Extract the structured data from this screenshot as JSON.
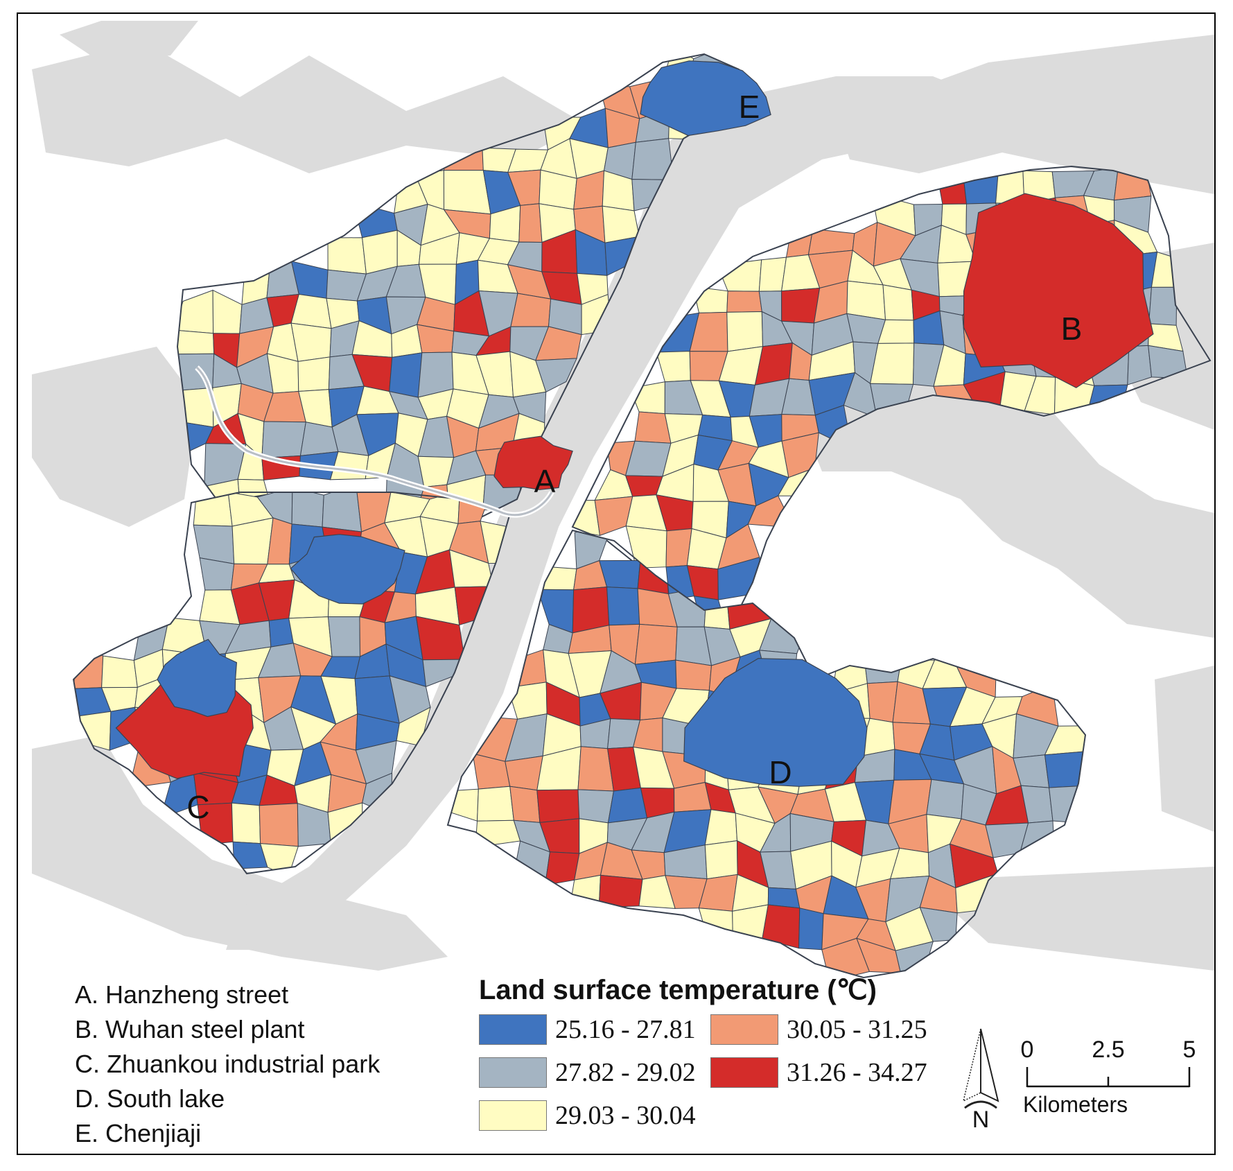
{
  "map": {
    "legend_title": "Land surface temperature (℃)",
    "classes": [
      {
        "label": "25.16 - 27.81",
        "color": "#3f74bf"
      },
      {
        "label": "27.82 - 29.02",
        "color": "#a4b4c2"
      },
      {
        "label": "29.03 - 30.04",
        "color": "#fffcc2"
      },
      {
        "label": "30.05 - 31.25",
        "color": "#f29a74"
      },
      {
        "label": "31.26 - 34.27",
        "color": "#d42c2a"
      }
    ],
    "places": [
      {
        "code": "A",
        "name": "A. Hanzheng street"
      },
      {
        "code": "B",
        "name": "B. Wuhan steel plant"
      },
      {
        "code": "C",
        "name": "C. Zhuankou industrial park"
      },
      {
        "code": "D",
        "name": "D. South lake"
      },
      {
        "code": "E",
        "name": "E. Chenjiaji"
      }
    ],
    "north_label": "N",
    "scale": {
      "ticks": [
        "0",
        "2.5",
        "5"
      ],
      "unit": "Kilometers"
    },
    "water_color": "#dcdcdc",
    "border_color": "#3a4250"
  }
}
